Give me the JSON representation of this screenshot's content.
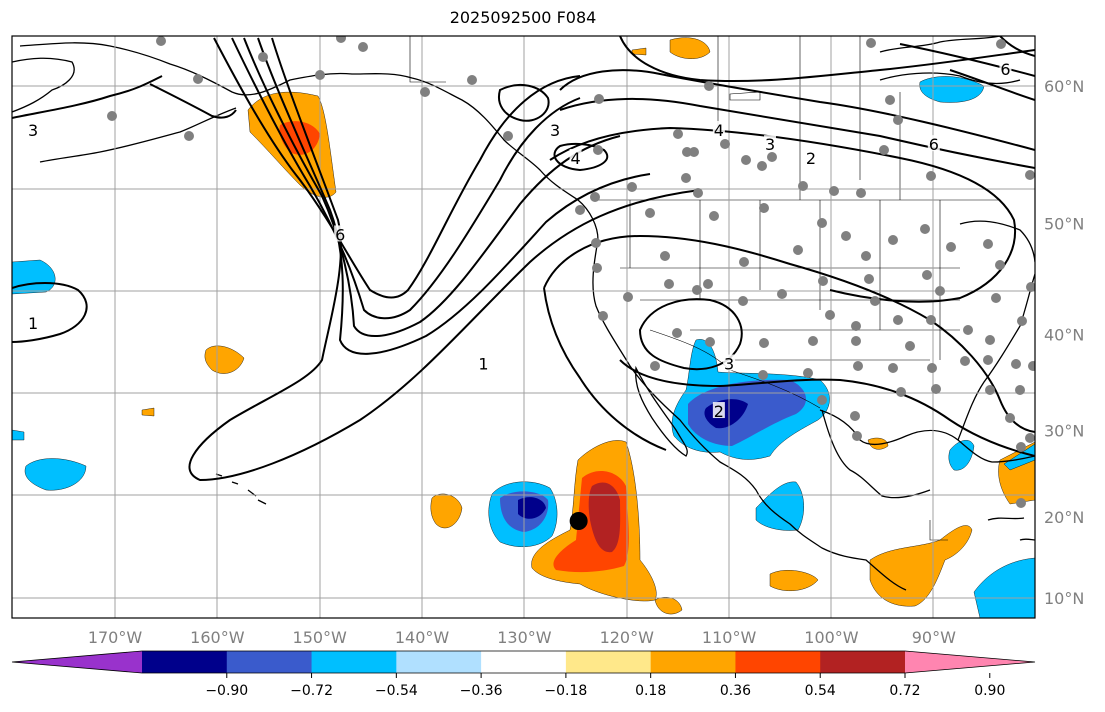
{
  "title": "2025092500 F084",
  "map": {
    "lat_labels": [
      {
        "text": "60°N",
        "lat": 60
      },
      {
        "text": "50°N",
        "lat": 50
      },
      {
        "text": "40°N",
        "lat": 40
      },
      {
        "text": "30°N",
        "lat": 30
      },
      {
        "text": "20°N",
        "lat": 20
      },
      {
        "text": "10°N",
        "lat": 10
      }
    ],
    "lon_labels": [
      {
        "text": "170°W",
        "lon": -170
      },
      {
        "text": "160°W",
        "lon": -160
      },
      {
        "text": "150°W",
        "lon": -150
      },
      {
        "text": "140°W",
        "lon": -140
      },
      {
        "text": "130°W",
        "lon": -130
      },
      {
        "text": "120°W",
        "lon": -120
      },
      {
        "text": "110°W",
        "lon": -110
      },
      {
        "text": "100°W",
        "lon": -100
      },
      {
        "text": "90°W",
        "lon": -90
      }
    ],
    "contour_labels": [
      {
        "text": "3",
        "lon": -178,
        "lat": 57
      },
      {
        "text": "1",
        "lon": -178,
        "lat": 41
      },
      {
        "text": "6",
        "lon": -148,
        "lat": 49
      },
      {
        "text": "1",
        "lon": -134,
        "lat": 37
      },
      {
        "text": "3",
        "lon": -127,
        "lat": 57
      },
      {
        "text": "4",
        "lon": -125,
        "lat": 55
      },
      {
        "text": "4",
        "lon": -111,
        "lat": 57
      },
      {
        "text": "3",
        "lon": -106,
        "lat": 56
      },
      {
        "text": "2",
        "lon": -102,
        "lat": 55
      },
      {
        "text": "6",
        "lon": -90,
        "lat": 56
      },
      {
        "text": "3",
        "lon": -110,
        "lat": 37
      },
      {
        "text": "2",
        "lon": -111,
        "lat": 32
      },
      {
        "text": "6",
        "lon": -83,
        "lat": 61
      }
    ],
    "storm_center": {
      "lon": -124.7,
      "lat": 19.5
    }
  },
  "colorbar": {
    "colors": [
      "#9932cc",
      "#00008b",
      "#3a5bcc",
      "#00bfff",
      "#b0e0ff",
      "#ffffff",
      "#ffe88a",
      "#ffa500",
      "#ff4500",
      "#b22222",
      "#ff85b0"
    ],
    "tick_labels": [
      "−0.90",
      "−0.72",
      "−0.54",
      "−0.36",
      "−0.18",
      "0.18",
      "0.36",
      "0.54",
      "0.72",
      "0.90"
    ]
  },
  "colors": {
    "grid": "#a0a0a0",
    "contour": "#000000",
    "station": "#808080",
    "neg_light": "#00bfff",
    "neg_mid": "#3a5bcc",
    "neg_dark": "#00008b",
    "pos_light": "#ffa500",
    "pos_mid": "#ff4500",
    "pos_dark": "#b22222"
  }
}
